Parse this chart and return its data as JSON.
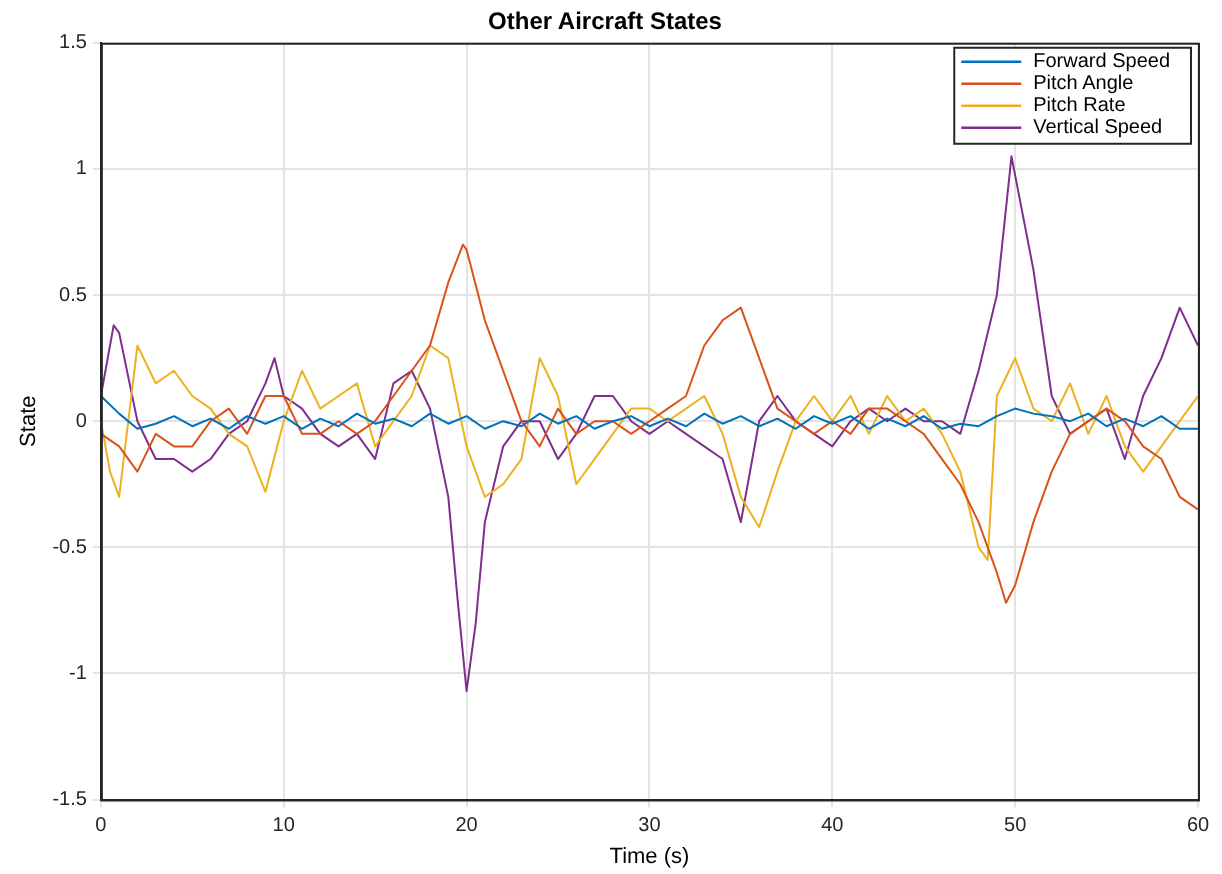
{
  "chart_data": {
    "type": "line",
    "title": "Other Aircraft States",
    "xlabel": "Time (s)",
    "ylabel": "State",
    "xlim": [
      0,
      60
    ],
    "xticks": [
      0,
      10,
      20,
      30,
      40,
      50,
      60
    ],
    "ylim": [
      -1.5,
      1.5
    ],
    "yticks": [
      -1.5,
      -1,
      -0.5,
      0,
      0.5,
      1,
      1.5
    ],
    "grid": true,
    "legend": "top right",
    "marker": "none",
    "line_style": "solid",
    "series": [
      {
        "name": "Forward Speed",
        "color": "#0072bd",
        "x": [
          0,
          1,
          2,
          3,
          4,
          5,
          6,
          7,
          8,
          9,
          10,
          11,
          12,
          13,
          14,
          15,
          16,
          17,
          18,
          19,
          20,
          21,
          22,
          23,
          24,
          25,
          26,
          27,
          28,
          29,
          30,
          31,
          32,
          33,
          34,
          35,
          36,
          37,
          38,
          39,
          40,
          41,
          42,
          43,
          44,
          45,
          46,
          47,
          48,
          49,
          50,
          51,
          52,
          53,
          54,
          55,
          56,
          57,
          58,
          59,
          60
        ],
        "values": [
          0.1,
          0.03,
          -0.03,
          -0.01,
          0.02,
          -0.02,
          0.01,
          -0.03,
          0.02,
          -0.01,
          0.02,
          -0.03,
          0.01,
          -0.02,
          0.03,
          -0.01,
          0.01,
          -0.02,
          0.03,
          -0.01,
          0.02,
          -0.03,
          0.0,
          -0.02,
          0.03,
          -0.01,
          0.02,
          -0.03,
          0.0,
          0.02,
          -0.02,
          0.01,
          -0.02,
          0.03,
          -0.01,
          0.02,
          -0.02,
          0.01,
          -0.03,
          0.02,
          -0.01,
          0.02,
          -0.03,
          0.01,
          -0.02,
          0.02,
          -0.03,
          -0.01,
          -0.02,
          0.02,
          0.05,
          0.03,
          0.02,
          0.0,
          0.03,
          -0.02,
          0.01,
          -0.02,
          0.02,
          -0.03,
          -0.03
        ]
      },
      {
        "name": "Pitch Angle",
        "color": "#d95319",
        "x": [
          0,
          1,
          2,
          3,
          4,
          5,
          6,
          7,
          8,
          9,
          10,
          11,
          12,
          13,
          14,
          15,
          16,
          17,
          18,
          19,
          19.8,
          20,
          21,
          22,
          23,
          24,
          25,
          26,
          27,
          28,
          29,
          30,
          31,
          32,
          33,
          34,
          35,
          36,
          37,
          38,
          39,
          40,
          41,
          42,
          43,
          44,
          45,
          46,
          47,
          48,
          49,
          49.5,
          50,
          51,
          52,
          53,
          54,
          55,
          56,
          57,
          58,
          59,
          60
        ],
        "values": [
          -0.05,
          -0.1,
          -0.2,
          -0.05,
          -0.1,
          -0.1,
          0.0,
          0.05,
          -0.05,
          0.1,
          0.1,
          -0.05,
          -0.05,
          0.0,
          -0.05,
          0.0,
          0.1,
          0.2,
          0.3,
          0.55,
          0.7,
          0.68,
          0.4,
          0.2,
          0.0,
          -0.1,
          0.05,
          -0.05,
          0.0,
          0.0,
          -0.05,
          0.0,
          0.05,
          0.1,
          0.3,
          0.4,
          0.45,
          0.25,
          0.05,
          0.0,
          -0.05,
          0.0,
          -0.05,
          0.05,
          0.05,
          0.0,
          -0.05,
          -0.15,
          -0.25,
          -0.4,
          -0.6,
          -0.72,
          -0.65,
          -0.4,
          -0.2,
          -0.05,
          0.0,
          0.05,
          0.0,
          -0.1,
          -0.15,
          -0.3,
          -0.35
        ]
      },
      {
        "name": "Pitch Rate",
        "color": "#edb120",
        "x": [
          0,
          0.5,
          1,
          2,
          3,
          4,
          5,
          6,
          7,
          8,
          9,
          10,
          11,
          12,
          13,
          14,
          15,
          16,
          17,
          18,
          19,
          20,
          21,
          22,
          23,
          24,
          25,
          26,
          27,
          28,
          29,
          30,
          31,
          32,
          33,
          34,
          35,
          36,
          37,
          38,
          39,
          40,
          41,
          42,
          43,
          44,
          45,
          46,
          47,
          48,
          48.5,
          49,
          50,
          51,
          52,
          53,
          54,
          55,
          56,
          57,
          58,
          59,
          60
        ],
        "values": [
          0.0,
          -0.2,
          -0.3,
          0.3,
          0.15,
          0.2,
          0.1,
          0.05,
          -0.05,
          -0.1,
          -0.28,
          0.0,
          0.2,
          0.05,
          0.1,
          0.15,
          -0.1,
          0.0,
          0.1,
          0.3,
          0.25,
          -0.1,
          -0.3,
          -0.25,
          -0.15,
          0.25,
          0.1,
          -0.25,
          -0.15,
          -0.05,
          0.05,
          0.05,
          0.0,
          0.05,
          0.1,
          -0.05,
          -0.3,
          -0.42,
          -0.2,
          0.0,
          0.1,
          0.0,
          0.1,
          -0.05,
          0.1,
          0.0,
          0.05,
          -0.05,
          -0.2,
          -0.5,
          -0.55,
          0.1,
          0.25,
          0.05,
          0.0,
          0.15,
          -0.05,
          0.1,
          -0.1,
          -0.2,
          -0.1,
          0.0,
          0.1
        ]
      },
      {
        "name": "Vertical Speed",
        "color": "#7e2f8e",
        "x": [
          0,
          0.7,
          1,
          2,
          3,
          4,
          5,
          6,
          7,
          8,
          9,
          9.5,
          10,
          11,
          12,
          13,
          14,
          15,
          16,
          17,
          18,
          19,
          19.5,
          20,
          20.5,
          21,
          22,
          23,
          24,
          25,
          26,
          27,
          28,
          29,
          30,
          31,
          32,
          33,
          34,
          35,
          36,
          37,
          38,
          39,
          40,
          41,
          42,
          43,
          44,
          45,
          46,
          47,
          48,
          49,
          49.8,
          51,
          52,
          53,
          54,
          55,
          56,
          57,
          58,
          59,
          60
        ],
        "values": [
          0.1,
          0.38,
          0.35,
          0.0,
          -0.15,
          -0.15,
          -0.2,
          -0.15,
          -0.05,
          0.0,
          0.15,
          0.25,
          0.1,
          0.05,
          -0.05,
          -0.1,
          -0.05,
          -0.15,
          0.15,
          0.2,
          0.05,
          -0.3,
          -0.7,
          -1.07,
          -0.8,
          -0.4,
          -0.1,
          0.0,
          0.0,
          -0.15,
          -0.05,
          0.1,
          0.1,
          0.0,
          -0.05,
          0.0,
          -0.05,
          -0.1,
          -0.15,
          -0.4,
          0.0,
          0.1,
          0.0,
          -0.05,
          -0.1,
          0.0,
          0.05,
          0.0,
          0.05,
          0.0,
          0.0,
          -0.05,
          0.2,
          0.5,
          1.05,
          0.6,
          0.1,
          -0.05,
          0.0,
          0.05,
          -0.15,
          0.1,
          0.25,
          0.45,
          0.3
        ]
      }
    ]
  }
}
